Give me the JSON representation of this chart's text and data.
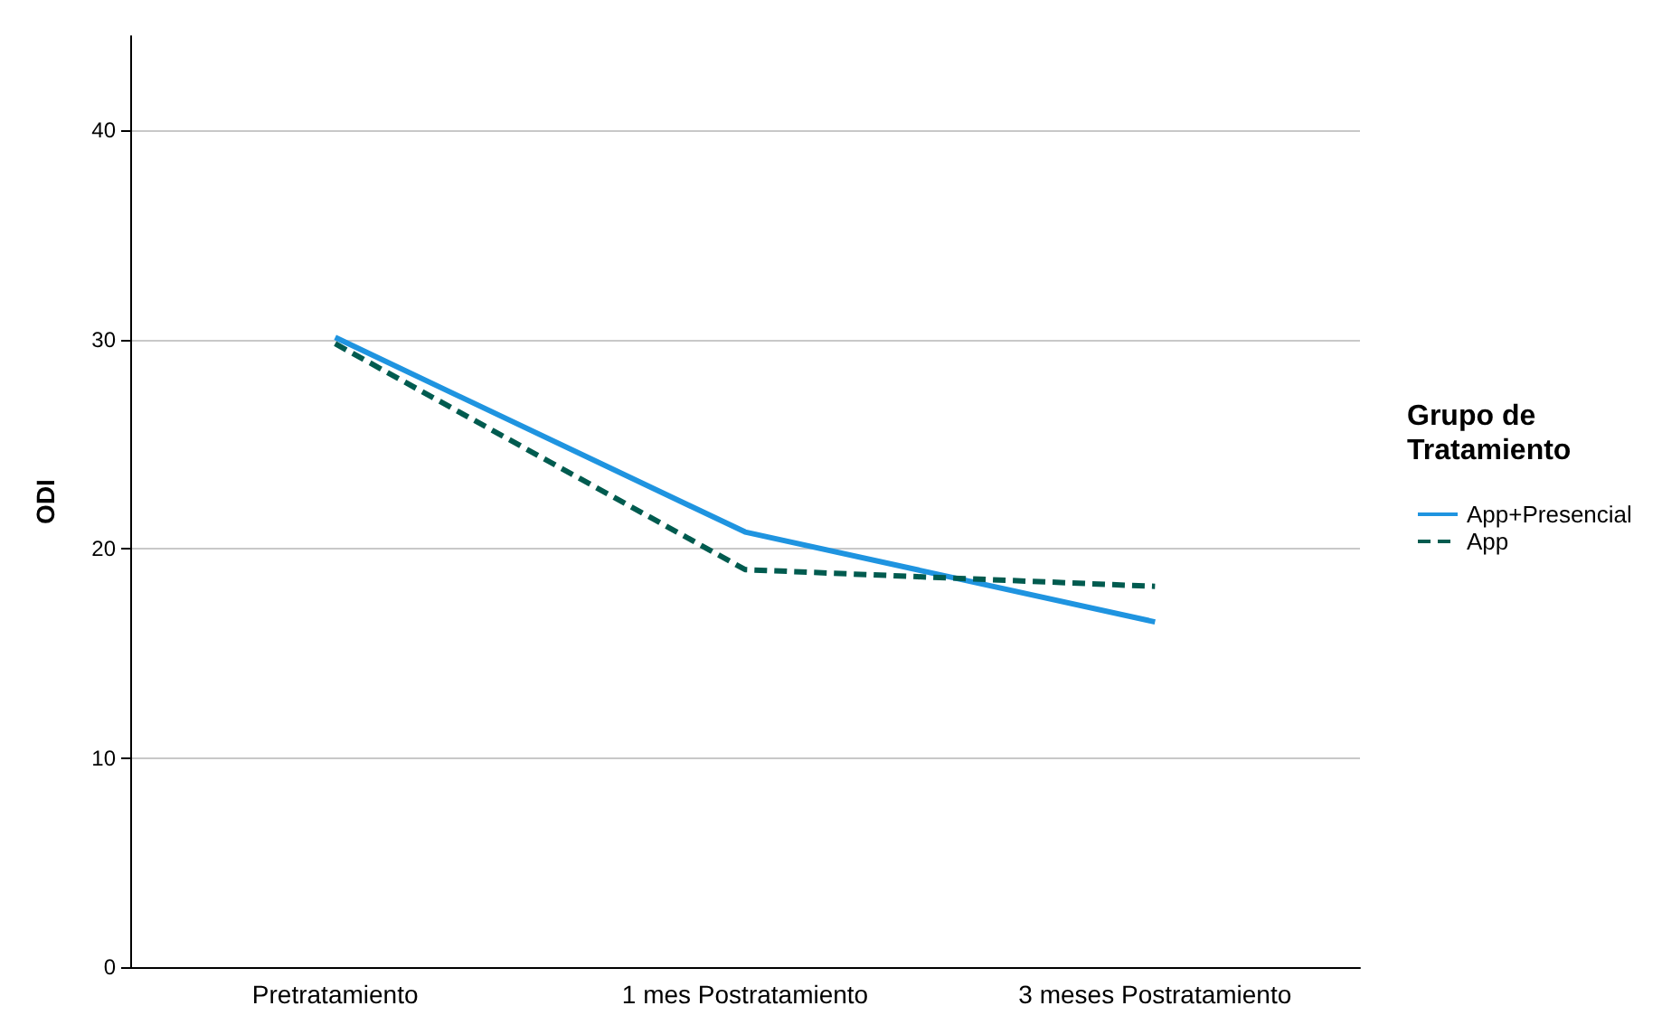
{
  "chart_data": {
    "type": "line",
    "ylabel": "ODI",
    "legend_title": "Grupo de Tratamiento",
    "categories": [
      "Pretratamiento",
      "1 mes Postratamiento",
      "3 meses Postratamiento"
    ],
    "series": [
      {
        "name": "App+Presencial",
        "color": "#1f94e0",
        "values": [
          30.1,
          20.8,
          16.5
        ],
        "line_style": "solid"
      },
      {
        "name": "App",
        "color": "#005b4f",
        "values": [
          29.8,
          19.0,
          18.2
        ],
        "line_style": "dashed"
      }
    ],
    "ylim": [
      0,
      44.5
    ],
    "yticks": [
      0,
      10,
      20,
      30,
      40
    ],
    "grid": "y",
    "legend": "right",
    "marker": "none"
  }
}
